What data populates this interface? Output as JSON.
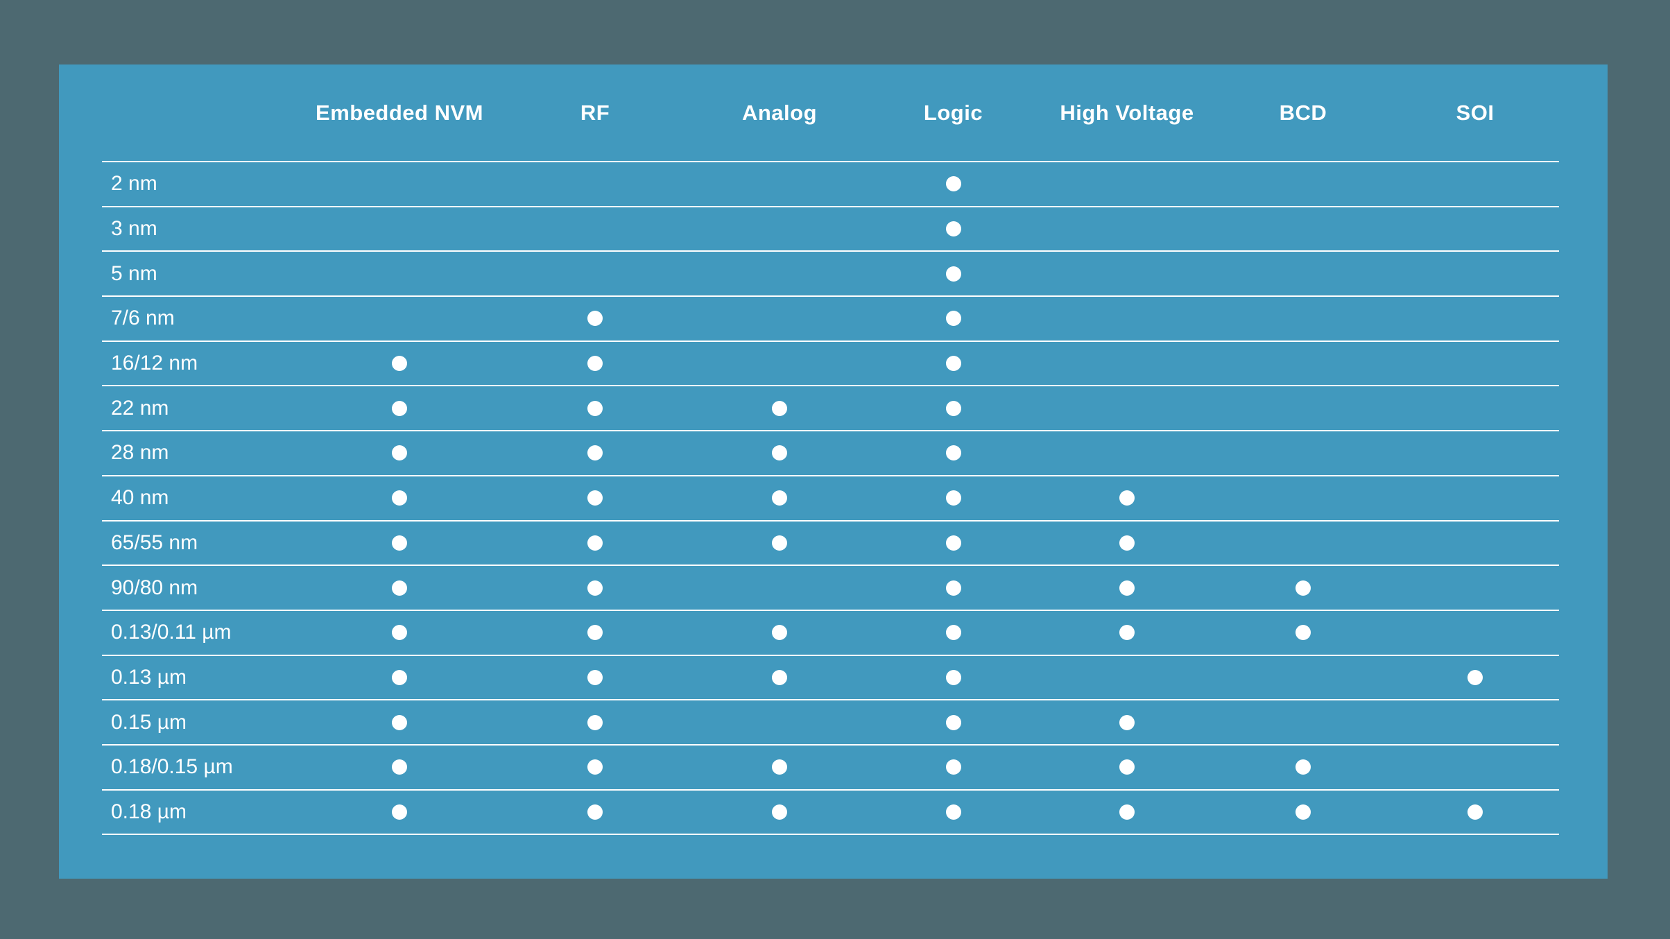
{
  "colors": {
    "background": "#4d6971",
    "panel": "#4199be",
    "text": "#ffffff",
    "line": "#ffffff",
    "dot": "#ffffff"
  },
  "chart_data": {
    "type": "table",
    "columns": [
      "Embedded NVM",
      "RF",
      "Analog",
      "Logic",
      "High Voltage",
      "BCD",
      "SOI"
    ],
    "rows": [
      {
        "label": "2 nm",
        "cells": [
          0,
          0,
          0,
          1,
          0,
          0,
          0
        ]
      },
      {
        "label": "3 nm",
        "cells": [
          0,
          0,
          0,
          1,
          0,
          0,
          0
        ]
      },
      {
        "label": "5 nm",
        "cells": [
          0,
          0,
          0,
          1,
          0,
          0,
          0
        ]
      },
      {
        "label": "7/6 nm",
        "cells": [
          0,
          1,
          0,
          1,
          0,
          0,
          0
        ]
      },
      {
        "label": "16/12 nm",
        "cells": [
          1,
          1,
          0,
          1,
          0,
          0,
          0
        ]
      },
      {
        "label": "22 nm",
        "cells": [
          1,
          1,
          1,
          1,
          0,
          0,
          0
        ]
      },
      {
        "label": "28 nm",
        "cells": [
          1,
          1,
          1,
          1,
          0,
          0,
          0
        ]
      },
      {
        "label": "40 nm",
        "cells": [
          1,
          1,
          1,
          1,
          1,
          0,
          0
        ]
      },
      {
        "label": "65/55 nm",
        "cells": [
          1,
          1,
          1,
          1,
          1,
          0,
          0
        ]
      },
      {
        "label": "90/80 nm",
        "cells": [
          1,
          1,
          0,
          1,
          1,
          1,
          0
        ]
      },
      {
        "label": "0.13/0.11 µm",
        "cells": [
          1,
          1,
          1,
          1,
          1,
          1,
          0
        ]
      },
      {
        "label": "0.13 µm",
        "cells": [
          1,
          1,
          1,
          1,
          0,
          0,
          1
        ]
      },
      {
        "label": "0.15 µm",
        "cells": [
          1,
          1,
          0,
          1,
          1,
          0,
          0
        ]
      },
      {
        "label": "0.18/0.15 µm",
        "cells": [
          1,
          1,
          1,
          1,
          1,
          1,
          0
        ]
      },
      {
        "label": "0.18 µm",
        "cells": [
          1,
          1,
          1,
          1,
          1,
          1,
          1
        ]
      }
    ]
  }
}
